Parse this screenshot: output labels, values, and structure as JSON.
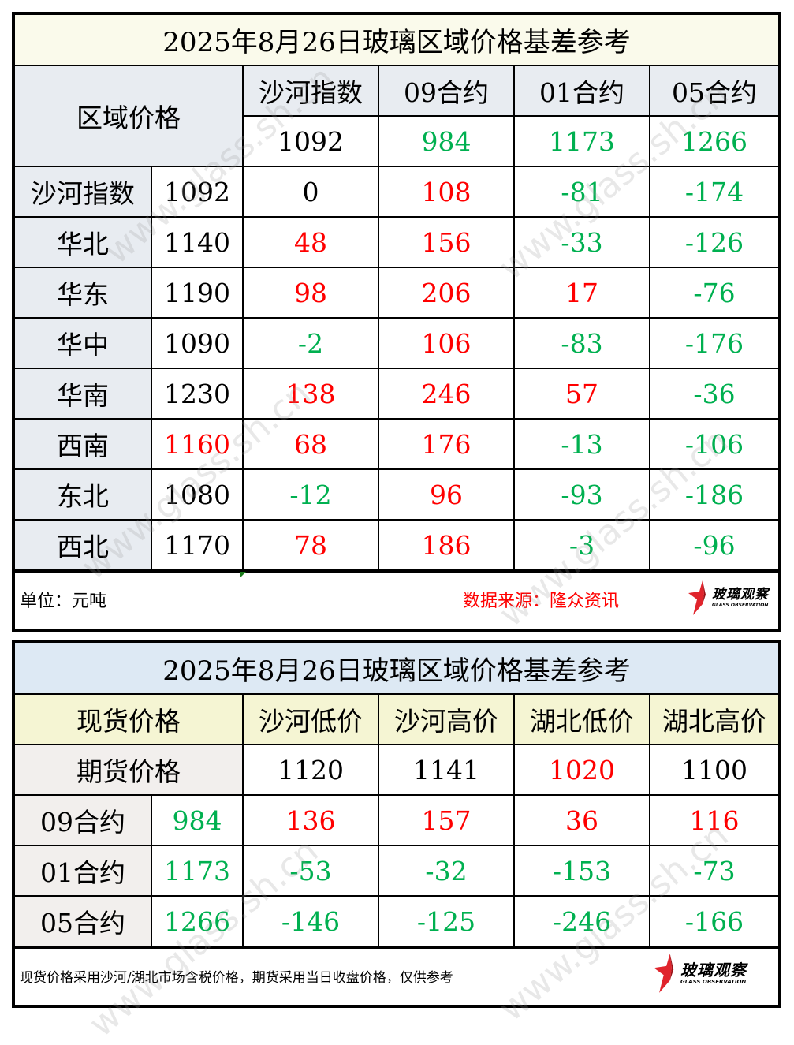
{
  "top_table": {
    "title": "2025年8月26日玻璃区域价格基差参考",
    "corner_label": "区域价格",
    "columns": [
      {
        "label": "沙河指数",
        "value": "1092",
        "color": "black"
      },
      {
        "label": "09合约",
        "value": "984",
        "color": "green"
      },
      {
        "label": "01合约",
        "value": "1173",
        "color": "green"
      },
      {
        "label": "05合约",
        "value": "1266",
        "color": "green"
      }
    ],
    "rows": [
      {
        "region": "沙河指数",
        "price": "1092",
        "price_color": "black",
        "cells": [
          {
            "v": "0",
            "c": "black"
          },
          {
            "v": "108",
            "c": "red"
          },
          {
            "v": "-81",
            "c": "green"
          },
          {
            "v": "-174",
            "c": "green"
          }
        ]
      },
      {
        "region": "华北",
        "price": "1140",
        "price_color": "black",
        "cells": [
          {
            "v": "48",
            "c": "red"
          },
          {
            "v": "156",
            "c": "red"
          },
          {
            "v": "-33",
            "c": "green"
          },
          {
            "v": "-126",
            "c": "green"
          }
        ]
      },
      {
        "region": "华东",
        "price": "1190",
        "price_color": "black",
        "cells": [
          {
            "v": "98",
            "c": "red"
          },
          {
            "v": "206",
            "c": "red"
          },
          {
            "v": "17",
            "c": "red"
          },
          {
            "v": "-76",
            "c": "green"
          }
        ]
      },
      {
        "region": "华中",
        "price": "1090",
        "price_color": "black",
        "cells": [
          {
            "v": "-2",
            "c": "green"
          },
          {
            "v": "106",
            "c": "red"
          },
          {
            "v": "-83",
            "c": "green"
          },
          {
            "v": "-176",
            "c": "green"
          }
        ]
      },
      {
        "region": "华南",
        "price": "1230",
        "price_color": "black",
        "cells": [
          {
            "v": "138",
            "c": "red"
          },
          {
            "v": "246",
            "c": "red"
          },
          {
            "v": "57",
            "c": "red"
          },
          {
            "v": "-36",
            "c": "green"
          }
        ]
      },
      {
        "region": "西南",
        "price": "1160",
        "price_color": "red",
        "cells": [
          {
            "v": "68",
            "c": "red"
          },
          {
            "v": "176",
            "c": "red"
          },
          {
            "v": "-13",
            "c": "green"
          },
          {
            "v": "-106",
            "c": "green"
          }
        ]
      },
      {
        "region": "东北",
        "price": "1080",
        "price_color": "black",
        "cells": [
          {
            "v": "-12",
            "c": "green"
          },
          {
            "v": "96",
            "c": "red"
          },
          {
            "v": "-93",
            "c": "green"
          },
          {
            "v": "-186",
            "c": "green"
          }
        ]
      },
      {
        "region": "西北",
        "price": "1170",
        "price_color": "black",
        "cells": [
          {
            "v": "78",
            "c": "red"
          },
          {
            "v": "186",
            "c": "red"
          },
          {
            "v": "-3",
            "c": "green"
          },
          {
            "v": "-96",
            "c": "green"
          }
        ]
      }
    ],
    "footer": {
      "unit": "单位：元吨",
      "source": "数据来源：隆众资讯"
    }
  },
  "bottom_table": {
    "title": "2025年8月26日玻璃区域价格基差参考",
    "spot_label": "现货价格",
    "futures_label": "期货价格",
    "columns": [
      {
        "label": "沙河低价",
        "value": "1120",
        "color": "black"
      },
      {
        "label": "沙河高价",
        "value": "1141",
        "color": "black"
      },
      {
        "label": "湖北低价",
        "value": "1020",
        "color": "red"
      },
      {
        "label": "湖北高价",
        "value": "1100",
        "color": "black"
      }
    ],
    "rows": [
      {
        "contract": "09合约",
        "price": "984",
        "price_color": "green",
        "cells": [
          {
            "v": "136",
            "c": "red"
          },
          {
            "v": "157",
            "c": "red"
          },
          {
            "v": "36",
            "c": "red"
          },
          {
            "v": "116",
            "c": "red"
          }
        ]
      },
      {
        "contract": "01合约",
        "price": "1173",
        "price_color": "green",
        "cells": [
          {
            "v": "-53",
            "c": "green"
          },
          {
            "v": "-32",
            "c": "green"
          },
          {
            "v": "-153",
            "c": "green"
          },
          {
            "v": "-73",
            "c": "green"
          }
        ]
      },
      {
        "contract": "05合约",
        "price": "1266",
        "price_color": "green",
        "cells": [
          {
            "v": "-146",
            "c": "green"
          },
          {
            "v": "-125",
            "c": "green"
          },
          {
            "v": "-246",
            "c": "green"
          },
          {
            "v": "-166",
            "c": "green"
          }
        ]
      }
    ],
    "footer": {
      "note": "现货价格采用沙河/湖北市场含税价格，期货采用当日收盘价格，仅供参考"
    }
  },
  "logo": {
    "cn": "玻璃观察",
    "en": "GLASS OBSERVATION",
    "icon": "red-star-icon"
  },
  "watermark": "www.glass.sh.cn",
  "colors": {
    "positive": "#ff0000",
    "negative": "#00b050",
    "title_top_bg": "#fafaeb",
    "title_bottom_bg": "#dde9f4",
    "header_gray_bg": "#e8ecf1",
    "header_yellow_bg": "#f5f5d3",
    "header_warm_bg": "#f2efed"
  }
}
